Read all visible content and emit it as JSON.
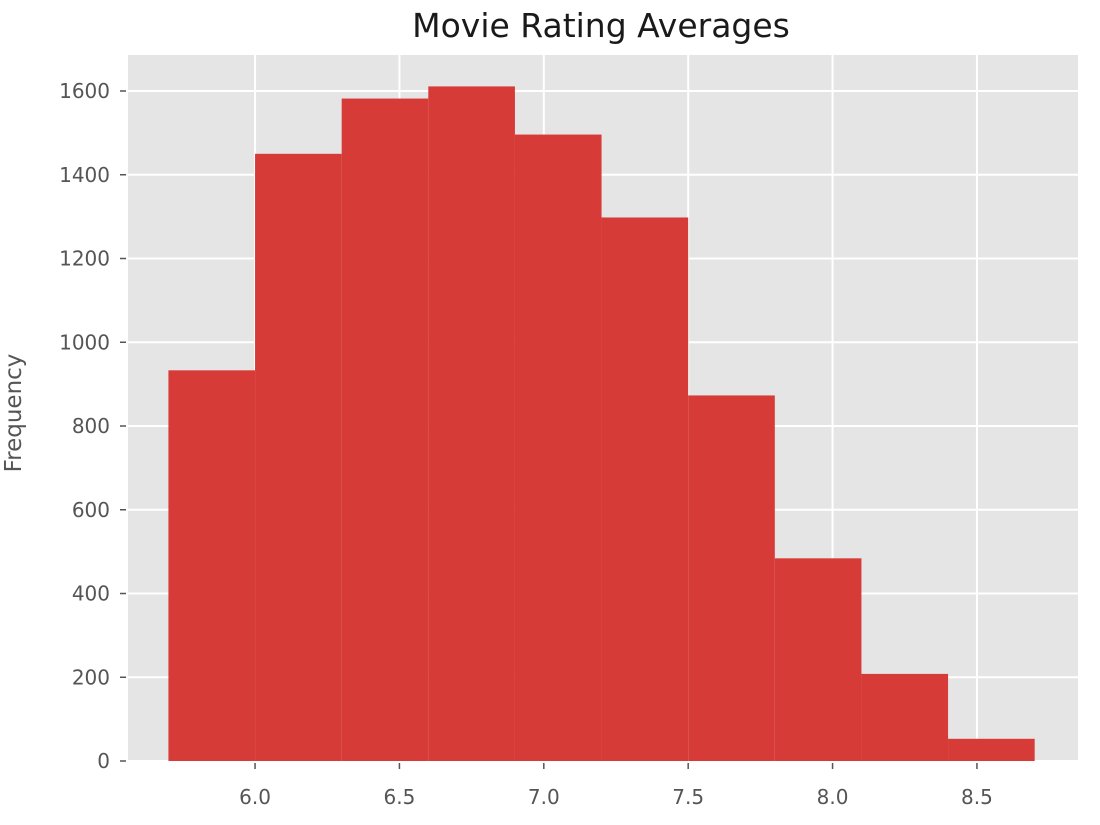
{
  "chart_data": {
    "type": "histogram",
    "title": "Movie Rating Averages",
    "xlabel": "",
    "ylabel": "Frequency",
    "bin_edges": [
      5.7,
      6.0,
      6.3,
      6.6,
      6.9,
      7.2,
      7.5,
      7.8,
      8.1,
      8.4,
      8.7
    ],
    "values": [
      933,
      1450,
      1582,
      1611,
      1496,
      1298,
      873,
      484,
      208,
      53
    ],
    "xticks": [
      6.0,
      6.5,
      7.0,
      7.5,
      8.0,
      8.5
    ],
    "xtick_labels": [
      "6.0",
      "6.5",
      "7.0",
      "7.5",
      "8.0",
      "8.5"
    ],
    "yticks": [
      0,
      200,
      400,
      600,
      800,
      1000,
      1200,
      1400,
      1600
    ],
    "ytick_labels": [
      "0",
      "200",
      "400",
      "600",
      "800",
      "1000",
      "1200",
      "1400",
      "1600"
    ],
    "xlim": [
      5.56,
      8.85
    ],
    "ylim": [
      0,
      1686
    ],
    "grid": true,
    "legend": null,
    "colors": {
      "bar": "#d63b37",
      "plot_background": "#e5e5e5",
      "grid": "#ffffff",
      "tick_text": "#555555",
      "title_text": "#1a1a1a"
    }
  }
}
